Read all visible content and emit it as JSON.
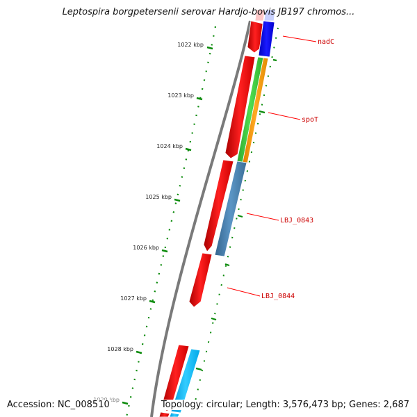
{
  "title": "Leptospira borgpetersenii serovar Hardjo-bovis JB197 chromos...",
  "accession": "Accession: NC_008510",
  "summary": "Topology: circular; Length: 3,576,473 bp; Genes: 2,687",
  "colors": {
    "backbone": "#777777",
    "cds_forward": "#ff0000",
    "tick": "#0a8a0a",
    "label": "#cc0000",
    "label_line": "#ff0000",
    "blue": "#0000ff",
    "green": "#3cc83c",
    "orange": "#ff9900",
    "steelblue": "#4682b4",
    "cyan": "#00bfff"
  },
  "scale_labels": [
    "1022 kbp",
    "1023 kbp",
    "1024 kbp",
    "1025 kbp",
    "1026 kbp",
    "1027 kbp",
    "1028 kbp",
    "1029 kbp"
  ],
  "gene_labels": [
    "nadC",
    "spoT",
    "LBJ_0843",
    "LBJ_0844"
  ]
}
